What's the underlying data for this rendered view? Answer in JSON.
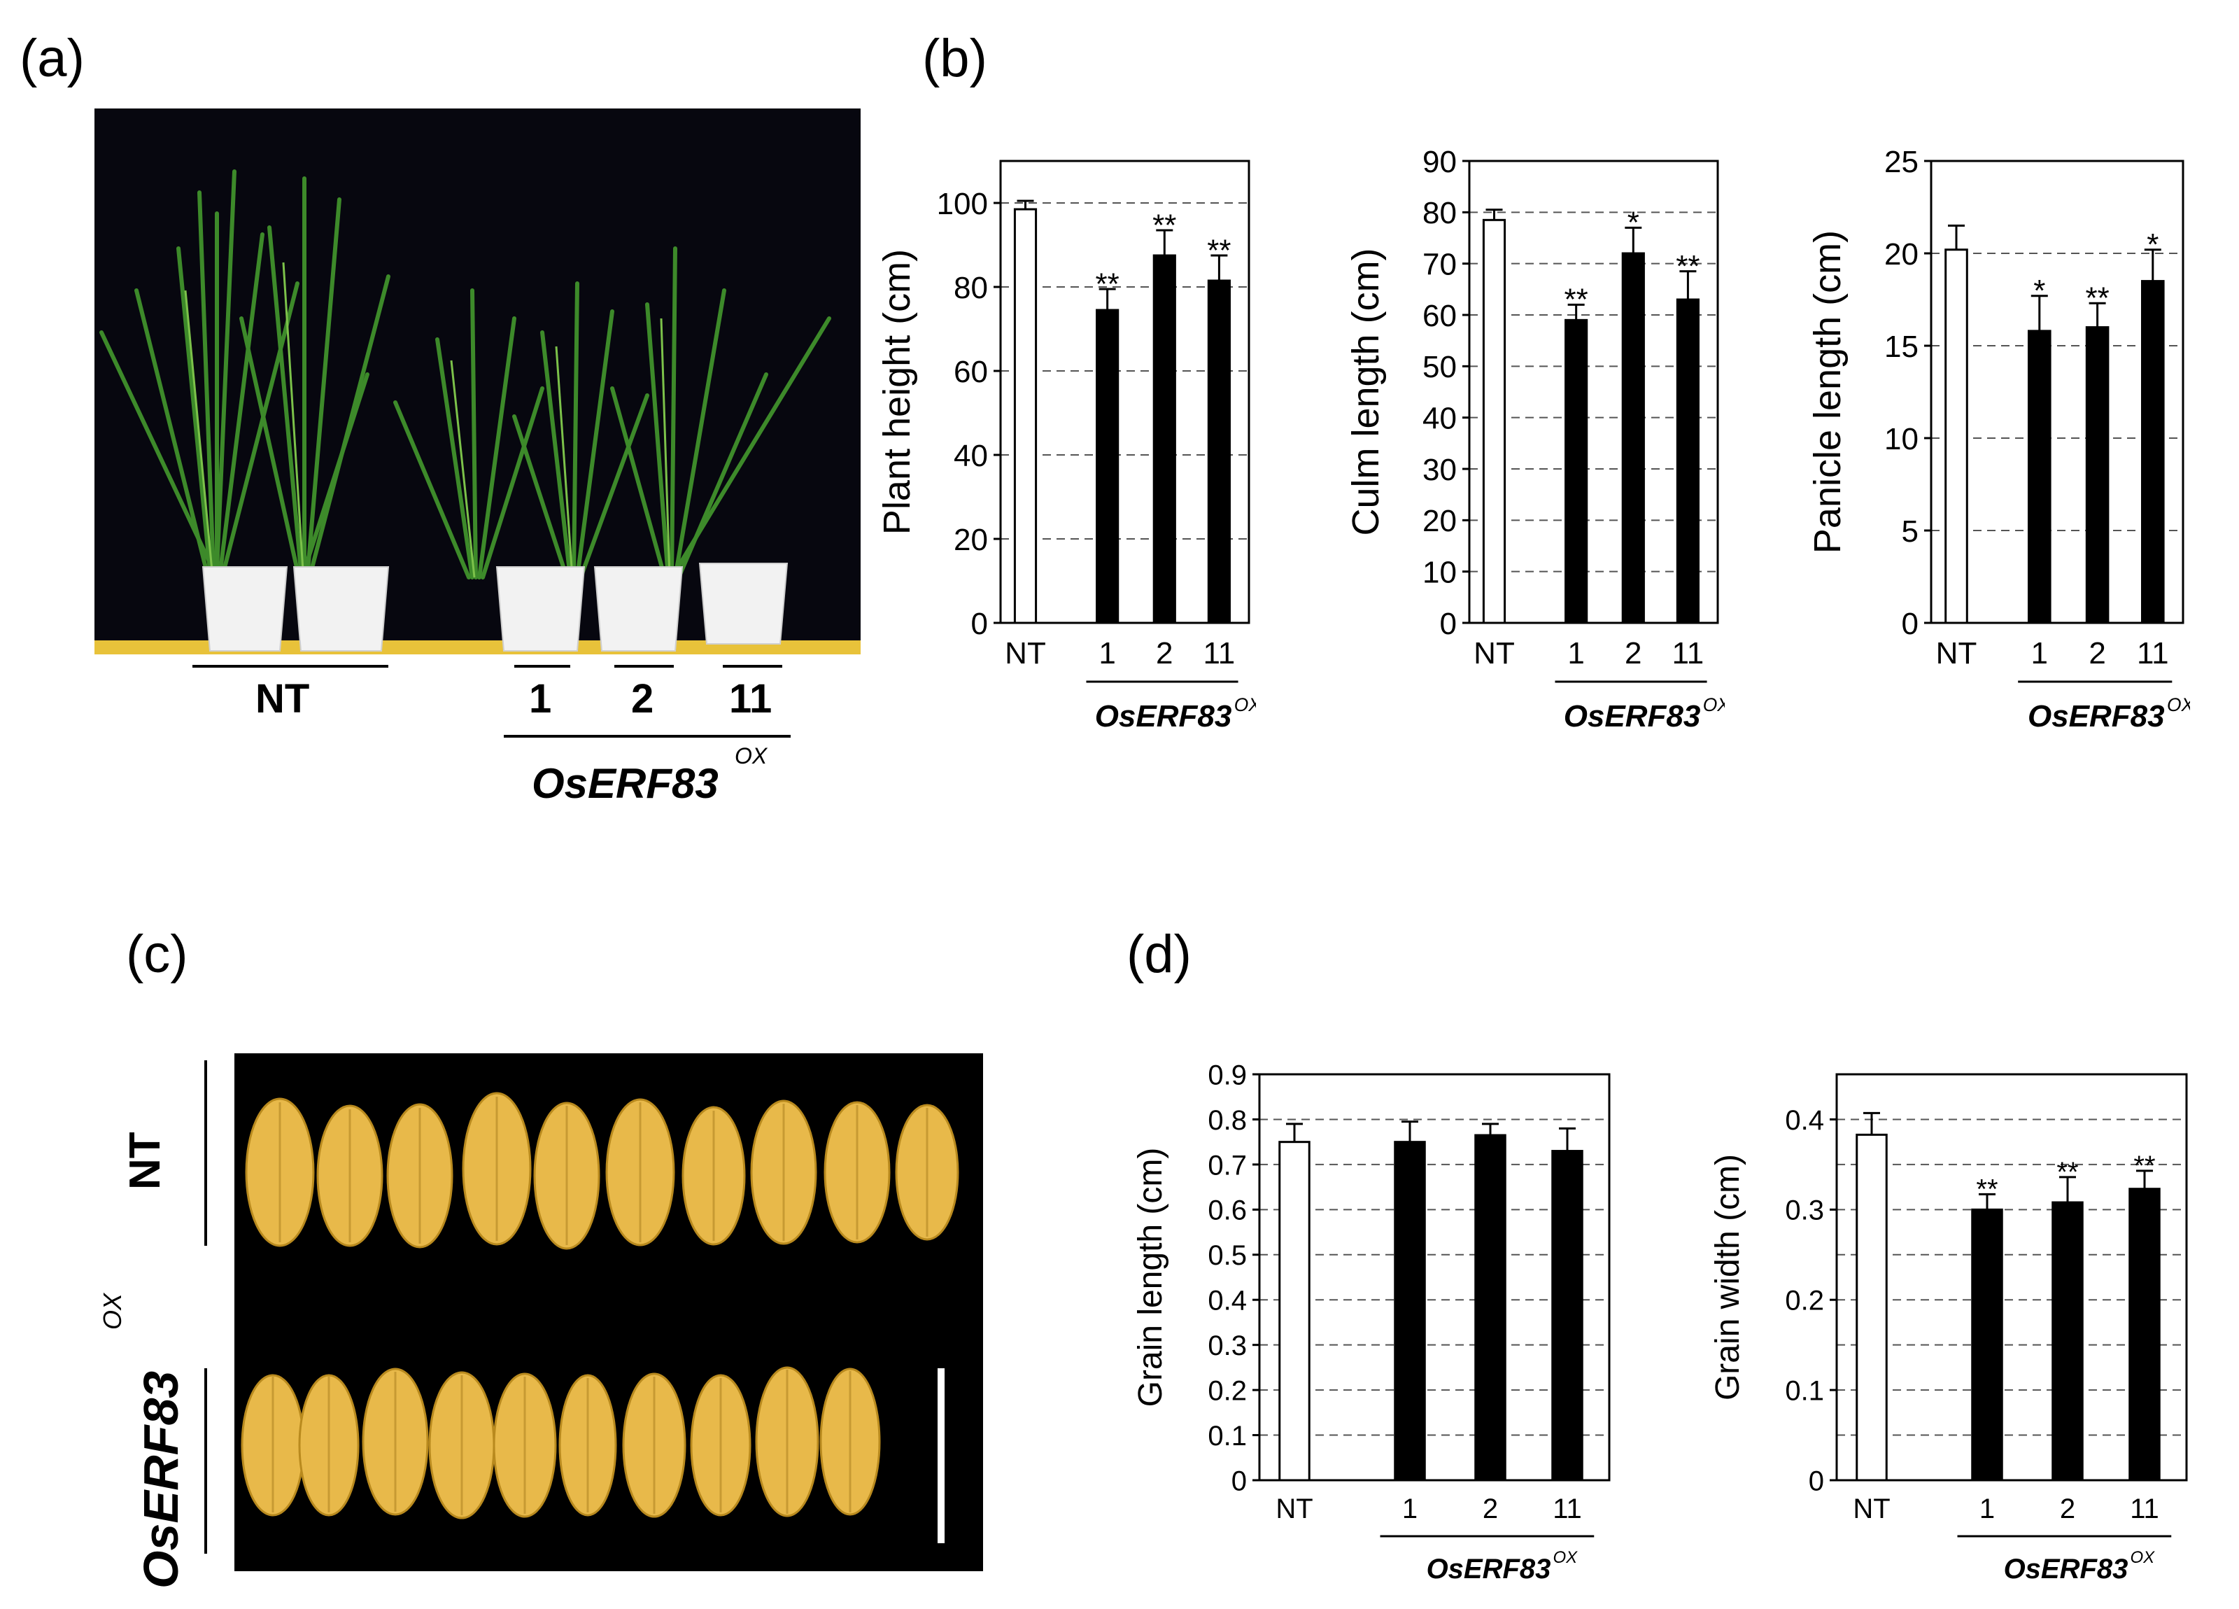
{
  "panels": {
    "a": "(a)",
    "b": "(b)",
    "c": "(c)",
    "d": "(d)"
  },
  "photo_a": {
    "nt_label": "NT",
    "line_labels": [
      "1",
      "2",
      "11"
    ],
    "group_label": "OsERF83",
    "group_sup": "OX"
  },
  "photo_c": {
    "row_nt": "NT",
    "row_ox": "OsERF83",
    "row_ox_sup": "OX"
  },
  "chart_data": [
    {
      "id": "plant-height",
      "type": "bar",
      "ylabel": "Plant height (cm)",
      "categories": [
        "NT",
        "1",
        "2",
        "11"
      ],
      "values": [
        98.5,
        74.5,
        87.5,
        81.5
      ],
      "errors": [
        2,
        5,
        6,
        6
      ],
      "significance": [
        "",
        "**",
        "**",
        "**"
      ],
      "ylim": [
        0,
        110
      ],
      "yticks": [
        0,
        20,
        40,
        60,
        80,
        100
      ],
      "group_label": "OsERF83",
      "group_sup": "OX"
    },
    {
      "id": "culm-length",
      "type": "bar",
      "ylabel": "Culm length (cm)",
      "categories": [
        "NT",
        "1",
        "2",
        "11"
      ],
      "values": [
        78.5,
        59,
        72,
        63
      ],
      "errors": [
        2,
        3,
        5,
        5.5
      ],
      "significance": [
        "",
        "**",
        "*",
        "**"
      ],
      "ylim": [
        0,
        90
      ],
      "yticks": [
        0,
        10,
        20,
        30,
        40,
        50,
        60,
        70,
        80,
        90
      ],
      "group_label": "OsERF83",
      "group_sup": "OX"
    },
    {
      "id": "panicle-length",
      "type": "bar",
      "ylabel": "Panicle length (cm)",
      "categories": [
        "NT",
        "1",
        "2",
        "11"
      ],
      "values": [
        20.2,
        15.8,
        16,
        18.5
      ],
      "errors": [
        1.3,
        1.9,
        1.3,
        1.7
      ],
      "significance": [
        "",
        "*",
        "**",
        "*"
      ],
      "ylim": [
        0,
        25
      ],
      "yticks": [
        0,
        5,
        10,
        15,
        20,
        25
      ],
      "group_label": "OsERF83",
      "group_sup": "OX"
    },
    {
      "id": "grain-length",
      "type": "bar",
      "ylabel": "Grain length (cm)",
      "categories": [
        "NT",
        "1",
        "2",
        "11"
      ],
      "values": [
        0.75,
        0.75,
        0.765,
        0.73
      ],
      "errors": [
        0.04,
        0.045,
        0.025,
        0.05
      ],
      "significance": [
        "",
        "",
        "",
        ""
      ],
      "ylim": [
        0,
        0.9
      ],
      "yticks": [
        0,
        0.1,
        0.2,
        0.3,
        0.4,
        0.5,
        0.6,
        0.7,
        0.8,
        0.9
      ],
      "group_label": "OsERF83",
      "group_sup": "OX"
    },
    {
      "id": "grain-width",
      "type": "bar",
      "ylabel": "Grain width (cm)",
      "categories": [
        "NT",
        "1",
        "2",
        "11"
      ],
      "values": [
        0.383,
        0.3,
        0.308,
        0.323
      ],
      "errors": [
        0.024,
        0.017,
        0.028,
        0.02
      ],
      "significance": [
        "",
        "**",
        "**",
        "**"
      ],
      "ylim": [
        0,
        0.45
      ],
      "yticks": [
        0,
        0.1,
        0.2,
        0.3,
        0.4
      ],
      "gridlines": [
        0.05,
        0.1,
        0.15,
        0.2,
        0.25,
        0.3,
        0.35,
        0.4
      ],
      "group_label": "OsERF83",
      "group_sup": "OX"
    }
  ]
}
